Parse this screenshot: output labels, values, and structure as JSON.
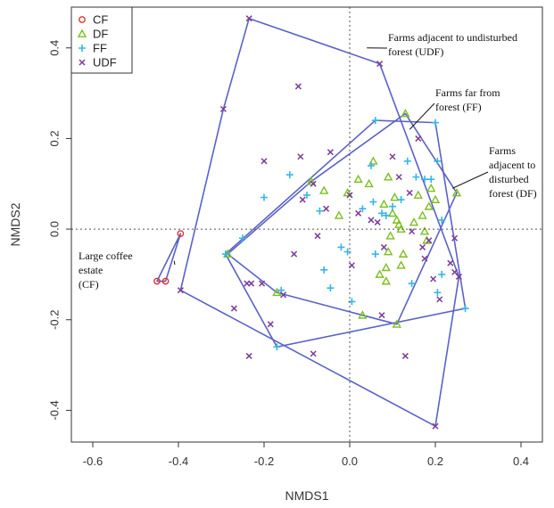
{
  "chart_data": {
    "type": "scatter",
    "xlabel": "NMDS1",
    "ylabel": "NMDS2",
    "xlim": [
      -0.65,
      0.45
    ],
    "ylim": [
      -0.47,
      0.49
    ],
    "xticks": [
      "-0.6",
      "-0.4",
      "-0.2",
      "0.0",
      "0.2",
      "0.4"
    ],
    "xtick_values": [
      -0.6,
      -0.4,
      -0.2,
      0.0,
      0.2,
      0.4
    ],
    "yticks": [
      "-0.4",
      "-0.2",
      "0.0",
      "0.2",
      "0.4"
    ],
    "ytick_values": [
      -0.4,
      -0.2,
      0.0,
      0.2,
      0.4
    ],
    "reference_lines": {
      "x": 0,
      "y": 0
    },
    "legend": {
      "position": "top-left",
      "entries": [
        {
          "key": "CF",
          "label": "CF",
          "marker": "circle",
          "color": "#e03030"
        },
        {
          "key": "DF",
          "label": "DF",
          "marker": "triangle",
          "color": "#7cbf1e"
        },
        {
          "key": "FF",
          "label": "FF",
          "marker": "plus",
          "color": "#35b6e6"
        },
        {
          "key": "UDF",
          "label": "UDF",
          "marker": "cross",
          "color": "#7a3d9a"
        }
      ]
    },
    "hull_color": "#5a62c8",
    "series": [
      {
        "key": "CF",
        "points": [
          [
            -0.395,
            -0.01
          ],
          [
            -0.45,
            -0.115
          ],
          [
            -0.43,
            -0.115
          ]
        ],
        "hull": [
          [
            -0.395,
            -0.01
          ],
          [
            -0.45,
            -0.115
          ],
          [
            -0.43,
            -0.115
          ]
        ]
      },
      {
        "key": "DF",
        "points": [
          [
            -0.285,
            -0.055
          ],
          [
            -0.17,
            -0.14
          ],
          [
            -0.09,
            0.105
          ],
          [
            -0.06,
            0.085
          ],
          [
            -0.025,
            0.03
          ],
          [
            -0.005,
            0.08
          ],
          [
            0.02,
            0.11
          ],
          [
            0.045,
            0.1
          ],
          [
            0.055,
            0.15
          ],
          [
            0.09,
            0.115
          ],
          [
            0.105,
            0.07
          ],
          [
            0.1,
            0.035
          ],
          [
            0.08,
            0.055
          ],
          [
            0.11,
            0.02
          ],
          [
            0.115,
            0.01
          ],
          [
            0.095,
            -0.015
          ],
          [
            0.12,
            0.0
          ],
          [
            0.15,
            0.015
          ],
          [
            0.16,
            0.075
          ],
          [
            0.185,
            0.05
          ],
          [
            0.19,
            0.09
          ],
          [
            0.2,
            0.065
          ],
          [
            0.17,
            0.03
          ],
          [
            0.175,
            -0.005
          ],
          [
            0.18,
            -0.025
          ],
          [
            0.09,
            -0.05
          ],
          [
            0.125,
            -0.055
          ],
          [
            0.12,
            -0.08
          ],
          [
            0.085,
            -0.085
          ],
          [
            0.085,
            -0.115
          ],
          [
            0.07,
            -0.1
          ],
          [
            0.03,
            -0.19
          ],
          [
            0.11,
            -0.21
          ],
          [
            0.13,
            0.255
          ],
          [
            0.25,
            0.08
          ]
        ],
        "hull": [
          [
            -0.285,
            -0.055
          ],
          [
            -0.09,
            0.105
          ],
          [
            0.13,
            0.255
          ],
          [
            0.25,
            0.08
          ],
          [
            0.11,
            -0.21
          ],
          [
            0.03,
            -0.19
          ],
          [
            -0.17,
            -0.14
          ]
        ]
      },
      {
        "key": "FF",
        "points": [
          [
            -0.25,
            -0.02
          ],
          [
            -0.2,
            0.07
          ],
          [
            -0.17,
            -0.26
          ],
          [
            -0.16,
            -0.135
          ],
          [
            -0.14,
            0.12
          ],
          [
            -0.1,
            0.075
          ],
          [
            -0.07,
            0.04
          ],
          [
            -0.06,
            -0.09
          ],
          [
            -0.045,
            -0.13
          ],
          [
            -0.02,
            -0.04
          ],
          [
            -0.005,
            -0.05
          ],
          [
            0.005,
            -0.16
          ],
          [
            0.03,
            0.045
          ],
          [
            0.05,
            0.14
          ],
          [
            0.055,
            0.06
          ],
          [
            0.06,
            -0.055
          ],
          [
            0.075,
            0.035
          ],
          [
            0.085,
            0.03
          ],
          [
            0.1,
            0.05
          ],
          [
            0.12,
            0.065
          ],
          [
            0.135,
            0.15
          ],
          [
            0.145,
            -0.12
          ],
          [
            0.155,
            0.115
          ],
          [
            0.175,
            0.11
          ],
          [
            0.19,
            0.11
          ],
          [
            0.205,
            0.15
          ],
          [
            0.215,
            0.02
          ],
          [
            0.215,
            -0.1
          ],
          [
            0.205,
            -0.14
          ],
          [
            0.06,
            0.24
          ],
          [
            0.2,
            0.235
          ],
          [
            0.27,
            -0.175
          ],
          [
            -0.29,
            -0.055
          ]
        ],
        "hull": [
          [
            -0.29,
            -0.055
          ],
          [
            0.06,
            0.24
          ],
          [
            0.2,
            0.235
          ],
          [
            0.27,
            -0.175
          ],
          [
            -0.17,
            -0.26
          ]
        ]
      },
      {
        "key": "UDF",
        "points": [
          [
            -0.235,
            0.465
          ],
          [
            -0.295,
            0.265
          ],
          [
            -0.395,
            -0.135
          ],
          [
            -0.235,
            -0.28
          ],
          [
            -0.23,
            -0.12
          ],
          [
            -0.2,
            0.15
          ],
          [
            -0.205,
            -0.12
          ],
          [
            -0.155,
            -0.145
          ],
          [
            -0.13,
            -0.055
          ],
          [
            -0.085,
            0.1
          ],
          [
            -0.115,
            0.16
          ],
          [
            -0.12,
            0.315
          ],
          [
            -0.085,
            -0.275
          ],
          [
            -0.11,
            0.065
          ],
          [
            -0.075,
            -0.015
          ],
          [
            -0.055,
            0.045
          ],
          [
            -0.045,
            0.17
          ],
          [
            0.0,
            0.075
          ],
          [
            0.005,
            -0.08
          ],
          [
            0.02,
            0.035
          ],
          [
            0.05,
            0.02
          ],
          [
            0.065,
            0.015
          ],
          [
            0.07,
            0.365
          ],
          [
            0.08,
            -0.04
          ],
          [
            0.1,
            0.16
          ],
          [
            0.115,
            0.115
          ],
          [
            0.14,
            0.08
          ],
          [
            0.145,
            -0.005
          ],
          [
            0.16,
            0.2
          ],
          [
            0.17,
            -0.04
          ],
          [
            0.175,
            -0.065
          ],
          [
            0.185,
            -0.025
          ],
          [
            0.195,
            -0.11
          ],
          [
            0.21,
            -0.155
          ],
          [
            0.245,
            -0.02
          ],
          [
            0.255,
            -0.105
          ],
          [
            0.2,
            -0.435
          ],
          [
            -0.27,
            -0.175
          ],
          [
            0.075,
            -0.19
          ],
          [
            -0.185,
            -0.21
          ],
          [
            0.13,
            -0.28
          ],
          [
            -0.24,
            -0.12
          ],
          [
            0.235,
            -0.075
          ],
          [
            0.245,
            -0.095
          ]
        ],
        "hull": [
          [
            -0.235,
            0.465
          ],
          [
            0.07,
            0.365
          ],
          [
            0.255,
            -0.105
          ],
          [
            0.2,
            -0.435
          ],
          [
            -0.395,
            -0.135
          ],
          [
            -0.295,
            0.265
          ]
        ]
      }
    ],
    "annotations": [
      {
        "lines": [
          "Farms adjacent to undisturbed",
          "forest (UDF)"
        ],
        "target": [
          0.04,
          0.4
        ],
        "anchor": "left"
      },
      {
        "lines": [
          "Farms far from",
          "forest (FF)"
        ],
        "target": [
          0.14,
          0.22
        ],
        "anchor": "left"
      },
      {
        "lines": [
          "Farms",
          "adjacent to",
          "disturbed",
          "forest (DF)"
        ],
        "target": [
          0.24,
          0.09
        ],
        "anchor": "left"
      },
      {
        "lines": [
          "Large coffee",
          "estate",
          "(CF)"
        ],
        "target": [
          -0.41,
          -0.07
        ],
        "anchor": "right"
      }
    ]
  }
}
